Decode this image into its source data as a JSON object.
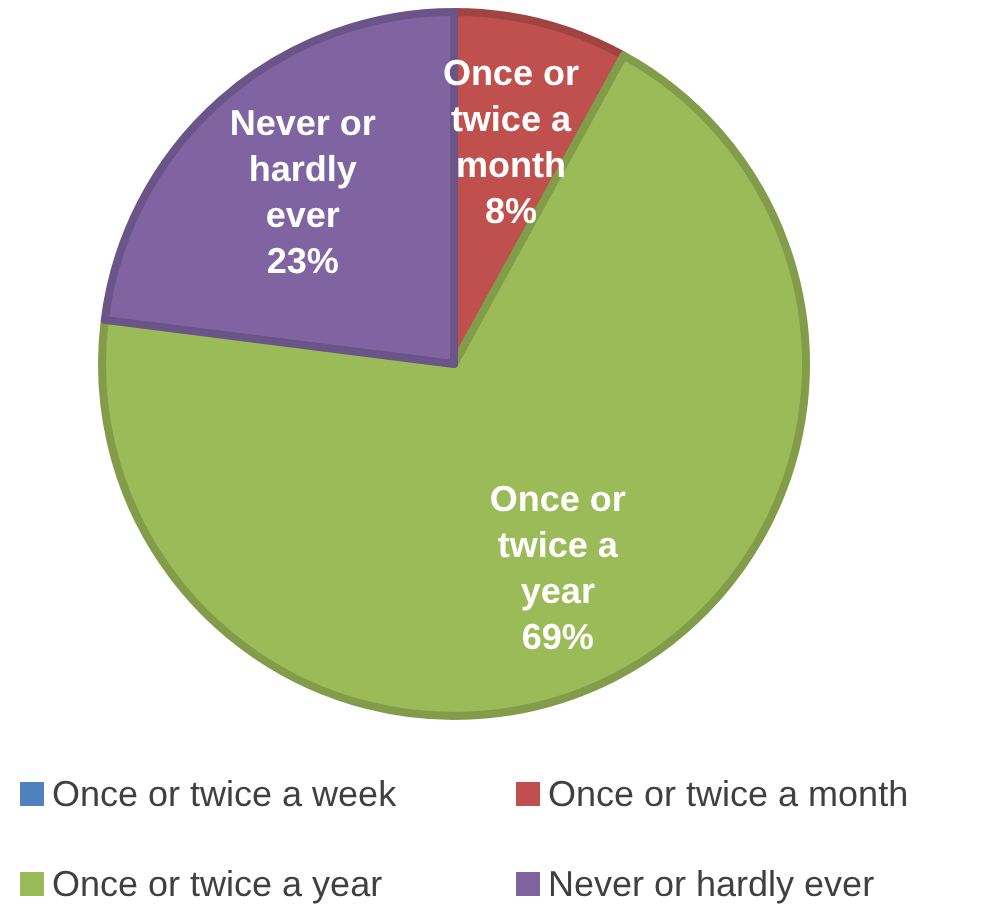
{
  "chart_data": {
    "type": "pie",
    "categories": [
      "Once or twice a week",
      "Once or twice a month",
      "Once or twice a year",
      "Never or hardly ever"
    ],
    "values": [
      0,
      8,
      69,
      23
    ],
    "colors": [
      "#4f81bd",
      "#c0504d",
      "#9bbb59",
      "#8064a2"
    ],
    "value_labels": [
      null,
      "8%",
      "69%",
      "23%"
    ],
    "legend": "bottom"
  }
}
